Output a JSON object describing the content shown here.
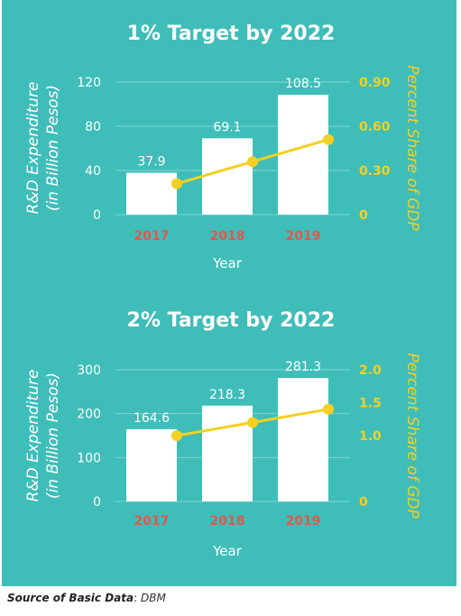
{
  "chart_data": [
    {
      "type": "bar",
      "title": "1% Target by 2022",
      "categories": [
        "2017",
        "2018",
        "2019"
      ],
      "xlabel": "Year",
      "ylabel": "R&D Expenditure\n(in Billion Pesos)",
      "ylim": [
        0,
        120
      ],
      "yticks": [
        0,
        40,
        80,
        120
      ],
      "ytick_labels": [
        "0",
        "40",
        "80",
        "120"
      ],
      "series": [
        {
          "values": [
            37.9,
            69.1,
            108.5
          ],
          "labels": [
            "37.9",
            "69.1",
            "108.5"
          ],
          "color": "#ffffff"
        }
      ],
      "secondary": {
        "type": "line",
        "ylabel": "Percent Share of GDP",
        "ylim": [
          0,
          0.9
        ],
        "yticks": [
          0,
          0.3,
          0.6,
          0.9
        ],
        "ytick_labels": [
          "0",
          "0.30",
          "0.60",
          "0.90"
        ],
        "values": [
          0.21,
          0.36,
          0.51
        ],
        "color": "#f5d020"
      },
      "grid": true
    },
    {
      "type": "bar",
      "title": "2% Target by 2022",
      "categories": [
        "2017",
        "2018",
        "2019"
      ],
      "xlabel": "Year",
      "ylabel": "R&D Expenditure\n(in Billion Pesos)",
      "ylim": [
        0,
        300
      ],
      "yticks": [
        0,
        100,
        200,
        300
      ],
      "ytick_labels": [
        "0",
        "100",
        "200",
        "300"
      ],
      "series": [
        {
          "values": [
            164.6,
            218.3,
            281.3
          ],
          "labels": [
            "164.6",
            "218.3",
            "281.3"
          ],
          "color": "#ffffff"
        }
      ],
      "secondary": {
        "type": "line",
        "ylabel": "Percent Share of GDP",
        "ylim": [
          0,
          2.0
        ],
        "yticks": [
          0,
          1.0,
          1.5,
          2.0
        ],
        "ytick_labels": [
          "0",
          "1.0",
          "1.5",
          "2.0"
        ],
        "values": [
          1.0,
          1.2,
          1.4
        ],
        "color": "#f5d020"
      },
      "grid": true
    }
  ],
  "colors": {
    "background": "#3fbdb9",
    "bar": "#ffffff",
    "line": "#f5d020",
    "year_label": "#e2574c",
    "text": "#ffffff",
    "right_axis": "#f5d020"
  },
  "footer": {
    "source_label": "Source of Basic Data",
    "separator": ": ",
    "source_value": "DBM"
  }
}
